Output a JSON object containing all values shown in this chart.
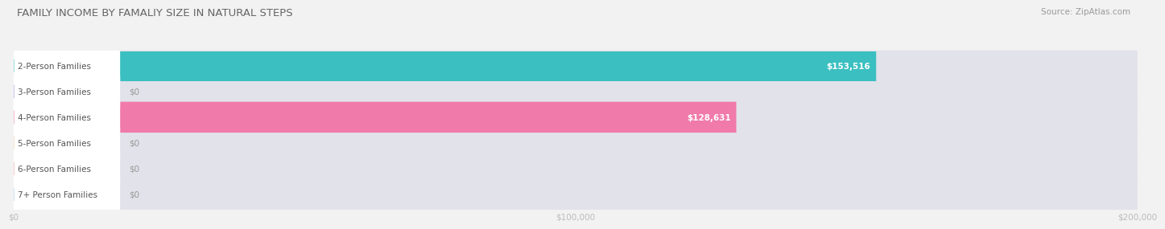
{
  "title": "FAMILY INCOME BY FAMALIY SIZE IN NATURAL STEPS",
  "source": "Source: ZipAtlas.com",
  "categories": [
    "2-Person Families",
    "3-Person Families",
    "4-Person Families",
    "5-Person Families",
    "6-Person Families",
    "7+ Person Families"
  ],
  "values": [
    153516,
    0,
    128631,
    0,
    0,
    0
  ],
  "bar_colors": [
    "#3bbfc0",
    "#9898d8",
    "#f07aaa",
    "#f7c99a",
    "#f0a0a0",
    "#a8c8e8"
  ],
  "value_labels": [
    "$153,516",
    "$0",
    "$128,631",
    "$0",
    "$0",
    "$0"
  ],
  "xlim_max": 200000,
  "xtick_values": [
    0,
    100000,
    200000
  ],
  "xtick_labels": [
    "$0",
    "$100,000",
    "$200,000"
  ],
  "background_color": "#f2f2f2",
  "bar_bg_color": "#e2e2ea",
  "title_fontsize": 9.5,
  "source_fontsize": 7.5,
  "label_fontsize": 7.5,
  "value_fontsize": 7.5,
  "bar_height": 0.6
}
